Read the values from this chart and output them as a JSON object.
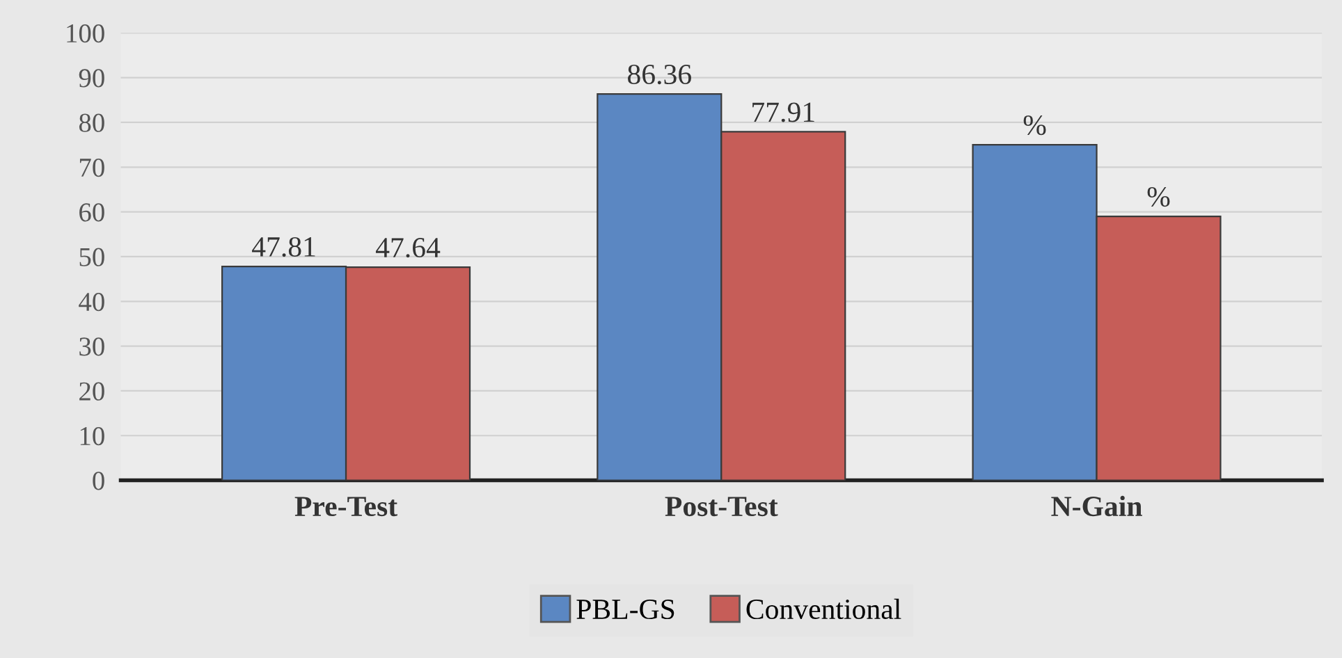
{
  "chart_data": {
    "type": "bar",
    "categories": [
      "Pre-Test",
      "Post-Test",
      "N-Gain"
    ],
    "series": [
      {
        "name": "PBL-GS",
        "color": "#5b87c2",
        "values": [
          47.81,
          86.36,
          75
        ],
        "value_labels": [
          "47.81",
          "86.36",
          "%"
        ]
      },
      {
        "name": "Conventional",
        "color": "#c65d58",
        "values": [
          47.64,
          77.91,
          59
        ],
        "value_labels": [
          "47.64",
          "77.91",
          "%"
        ]
      }
    ],
    "ylim": [
      0,
      100
    ],
    "yticks": [
      0,
      10,
      20,
      30,
      40,
      50,
      60,
      70,
      80,
      90,
      100
    ],
    "grid": "y",
    "legend": "bottom"
  }
}
